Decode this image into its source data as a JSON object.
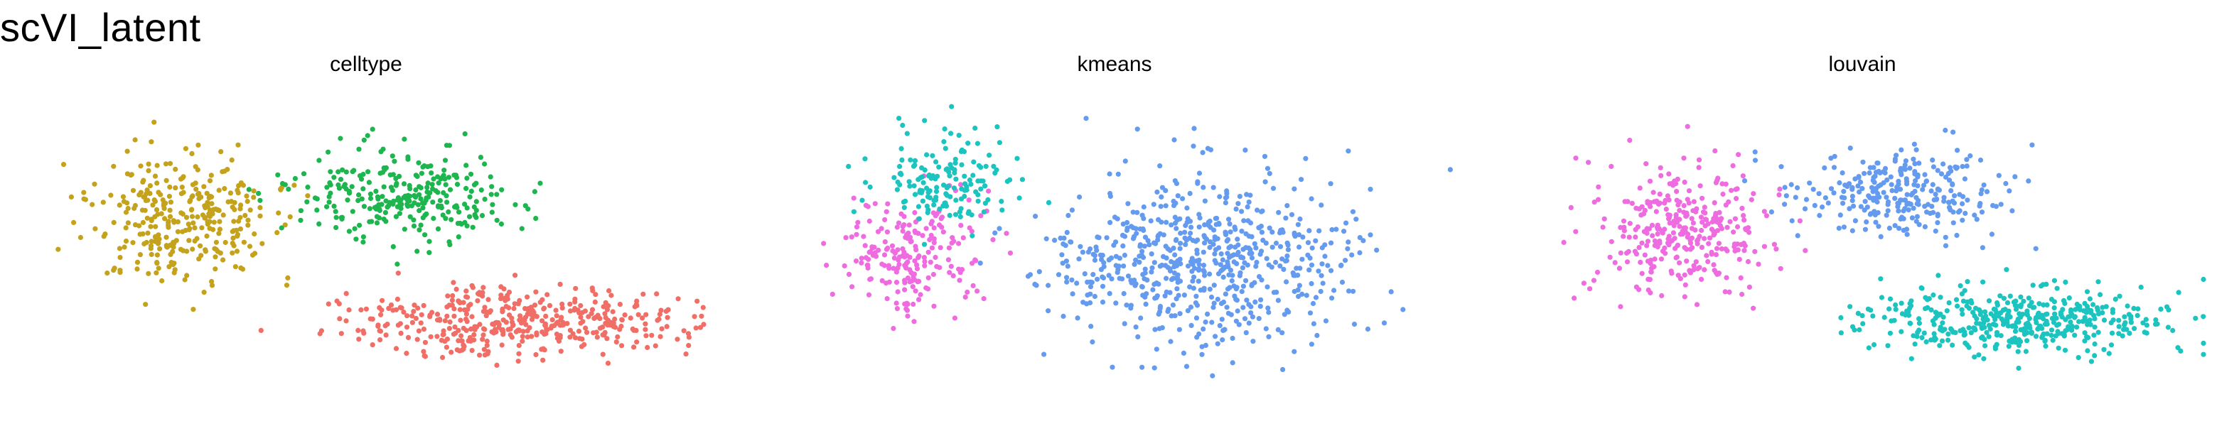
{
  "figure": {
    "title": "scVI_latent"
  },
  "chart_data": [
    {
      "type": "scatter",
      "title": "celltype",
      "xlabel": "",
      "ylabel": "",
      "grid": false,
      "axes": false,
      "series": [
        {
          "group": 0,
          "color": "#C4A21B",
          "cx": 0.23,
          "cy": 0.41,
          "sx": 0.12,
          "sy": 0.19,
          "n": 320,
          "seed": 11
        },
        {
          "group": 1,
          "color": "#1DB54E",
          "cx": 0.55,
          "cy": 0.33,
          "sx": 0.15,
          "sy": 0.13,
          "n": 280,
          "seed": 23
        },
        {
          "group": 2,
          "color": "#F06E65",
          "cx": 0.72,
          "cy": 0.74,
          "sx": 0.22,
          "sy": 0.1,
          "n": 420,
          "seed": 37
        }
      ]
    },
    {
      "type": "scatter",
      "title": "kmeans",
      "xlabel": "",
      "ylabel": "",
      "grid": false,
      "axes": false,
      "series": [
        {
          "group": 0,
          "color": "#EE6BE0",
          "cx": 0.2,
          "cy": 0.52,
          "sx": 0.1,
          "sy": 0.16,
          "n": 210,
          "seed": 41
        },
        {
          "group": 1,
          "color": "#1CC4C0",
          "cx": 0.25,
          "cy": 0.28,
          "sx": 0.1,
          "sy": 0.15,
          "n": 160,
          "seed": 53
        },
        {
          "group": 2,
          "color": "#659BEF",
          "cx": 0.62,
          "cy": 0.53,
          "sx": 0.2,
          "sy": 0.24,
          "n": 650,
          "seed": 67
        }
      ]
    },
    {
      "type": "scatter",
      "title": "louvain",
      "xlabel": "",
      "ylabel": "",
      "grid": false,
      "axes": false,
      "series": [
        {
          "group": 0,
          "color": "#EE6BE0",
          "cx": 0.23,
          "cy": 0.44,
          "sx": 0.12,
          "sy": 0.19,
          "n": 330,
          "seed": 71
        },
        {
          "group": 1,
          "color": "#659BEF",
          "cx": 0.55,
          "cy": 0.32,
          "sx": 0.15,
          "sy": 0.13,
          "n": 280,
          "seed": 83
        },
        {
          "group": 2,
          "color": "#1CC4C0",
          "cx": 0.72,
          "cy": 0.73,
          "sx": 0.22,
          "sy": 0.1,
          "n": 420,
          "seed": 97
        }
      ]
    }
  ]
}
